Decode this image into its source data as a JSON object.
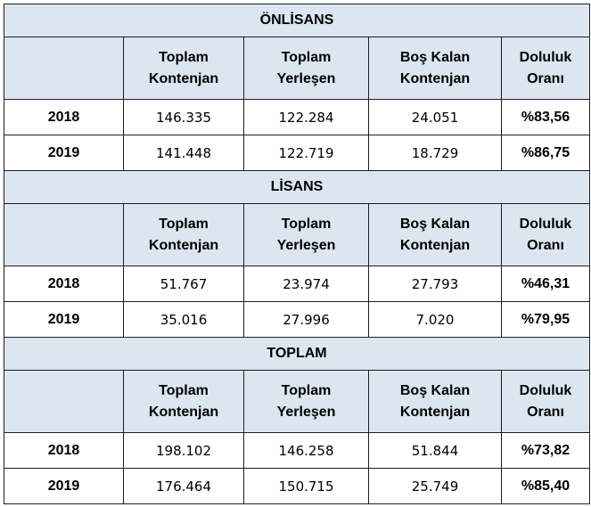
{
  "columns": {
    "c1": [
      "Toplam",
      "Kontenjan"
    ],
    "c2": [
      "Toplam",
      "Yerleşen"
    ],
    "c3": [
      "Boş Kalan",
      "Kontenjan"
    ],
    "c4": [
      "Doluluk",
      "Oranı"
    ]
  },
  "sections": [
    {
      "title": "ÖNLİSANS",
      "rows": [
        {
          "year": "2018",
          "kontenjan": "146.335",
          "yerlesen": "122.284",
          "bos": "24.051",
          "oran": "%83,56"
        },
        {
          "year": "2019",
          "kontenjan": "141.448",
          "yerlesen": "122.719",
          "bos": "18.729",
          "oran": "%86,75"
        }
      ]
    },
    {
      "title": "LİSANS",
      "rows": [
        {
          "year": "2018",
          "kontenjan": "51.767",
          "yerlesen": "23.974",
          "bos": "27.793",
          "oran": "%46,31"
        },
        {
          "year": "2019",
          "kontenjan": "35.016",
          "yerlesen": "27.996",
          "bos": "7.020",
          "oran": "%79,95"
        }
      ]
    },
    {
      "title": "TOPLAM",
      "rows": [
        {
          "year": "2018",
          "kontenjan": "198.102",
          "yerlesen": "146.258",
          "bos": "51.844",
          "oran": "%73,82"
        },
        {
          "year": "2019",
          "kontenjan": "176.464",
          "yerlesen": "150.715",
          "bos": "25.749",
          "oran": "%85,40"
        }
      ]
    }
  ]
}
